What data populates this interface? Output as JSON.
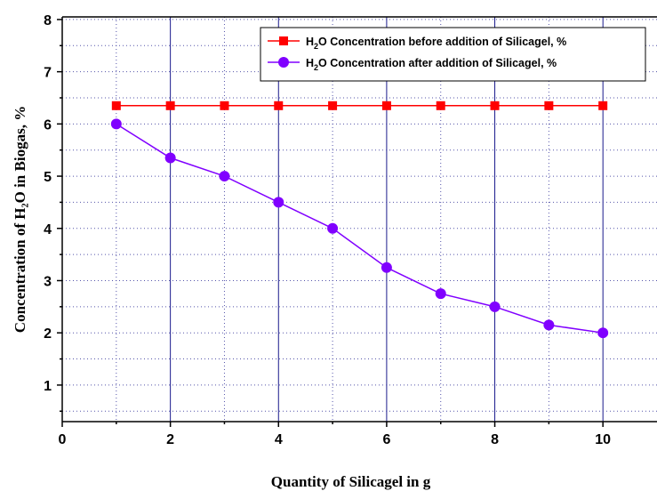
{
  "chart_data": {
    "type": "line",
    "xlabel": "Quantity of Silicagel in g",
    "ylabel": "Concentration of  H₂O  in Biogas, %",
    "xlim": [
      0,
      11
    ],
    "ylim": [
      0.3,
      8.05
    ],
    "xticks": [
      0,
      2,
      4,
      6,
      8,
      10
    ],
    "yticks": [
      1,
      2,
      3,
      4,
      5,
      6,
      7,
      8
    ],
    "grid": {
      "vertical_major": "solid",
      "horizontal_major": "dotted",
      "minor": "dotted"
    },
    "legend_position": "top-right",
    "series": [
      {
        "name": "H₂O Concentration before addition of Silicagel, %",
        "marker": "square",
        "color": "#ff0000",
        "x": [
          1,
          2,
          3,
          4,
          5,
          6,
          7,
          8,
          9,
          10
        ],
        "y": [
          6.35,
          6.35,
          6.35,
          6.35,
          6.35,
          6.35,
          6.35,
          6.35,
          6.35,
          6.35
        ]
      },
      {
        "name": "H₂O Concentration after addition of Silicagel, %",
        "marker": "circle",
        "color": "#8000ff",
        "x": [
          1,
          2,
          3,
          4,
          5,
          6,
          7,
          8,
          9,
          10
        ],
        "y": [
          6.0,
          5.35,
          5.0,
          4.5,
          4.0,
          3.25,
          2.75,
          2.5,
          2.15,
          2.0
        ]
      }
    ],
    "colors": {
      "grid_major": "#1a1a8c",
      "grid_minor": "#5555aa",
      "axis": "#000000"
    }
  }
}
